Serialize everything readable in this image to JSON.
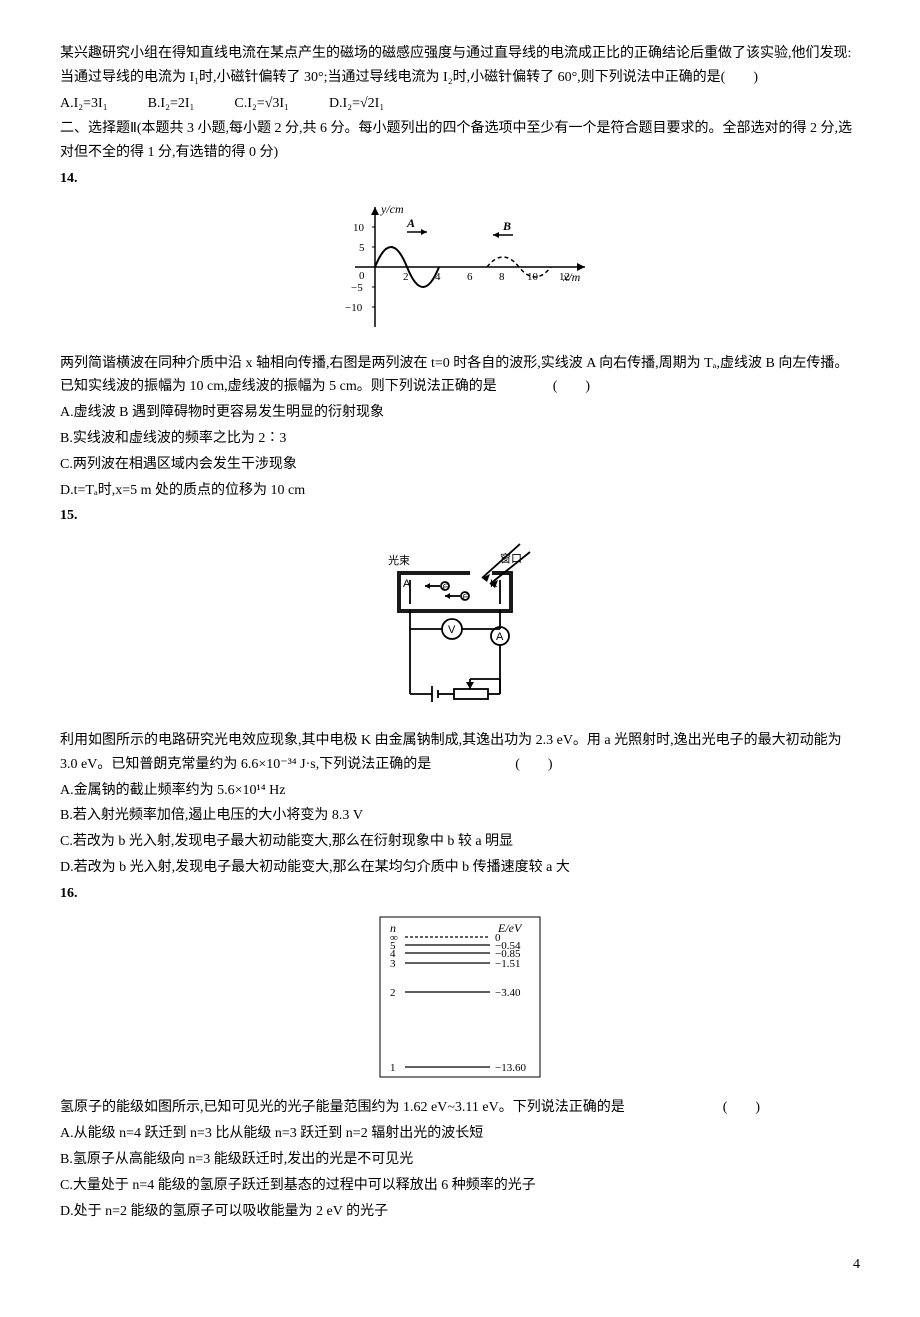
{
  "q13_intro": "某兴趣研究小组在得知直线电流在某点产生的磁场的磁感应强度与通过直导线的电流成正比的正确结论后重做了该实验,他们发现:当通过导线的电流为 I₁时,小磁针偏转了 30°;当通过导线电流为 I₂时,小磁针偏转了 60°,则下列说法中正确的是(　　)",
  "q13_options": [
    "A.I₂=3I₁",
    "B.I₂=2I₁",
    "C.I₂=√3I₁",
    "D.I₂=√2I₁"
  ],
  "section2": "二、选择题Ⅱ(本题共 3 小题,每小题 2 分,共 6 分。每小题列出的四个备选项中至少有一个是符合题目要求的。全部选对的得 2 分,选对但不全的得 1 分,有选错的得 0 分)",
  "q14_num": "14.",
  "q14_body": "两列简谐横波在同种介质中沿 x 轴相向传播,右图是两列波在 t=0 时各自的波形,实线波 A 向右传播,周期为 Tₐ,虚线波 B 向左传播。已知实线波的振幅为 10 cm,虚线波的振幅为 5 cm。则下列说法正确的是　　　　(　　)",
  "q14_opts": [
    "A.虚线波 B 遇到障碍物时更容易发生明显的衍射现象",
    "B.实线波和虚线波的频率之比为 2∶3",
    "C.两列波在相遇区域内会发生干涉现象",
    "D.t=Tₐ时,x=5 m 处的质点的位移为 10 cm"
  ],
  "q15_num": "15.",
  "q15_body": "利用如图所示的电路研究光电效应现象,其中电极 K 由金属钠制成,其逸出功为 2.3 eV。用 a 光照射时,逸出光电子的最大初动能为 3.0 eV。已知普朗克常量约为 6.6×10⁻³⁴ J·s,下列说法正确的是　　　　　　(　　)",
  "q15_opts": [
    "A.金属钠的截止频率约为 5.6×10¹⁴ Hz",
    "B.若入射光频率加倍,遏止电压的大小将变为 8.3 V",
    "C.若改为 b 光入射,发现电子最大初动能变大,那么在衍射现象中 b 较 a 明显",
    "D.若改为 b 光入射,发现电子最大初动能变大,那么在某均匀介质中 b 传播速度较 a 大"
  ],
  "q16_num": "16.",
  "q16_body": "氢原子的能级如图所示,已知可见光的光子能量范围约为 1.62 eV~3.11 eV。下列说法正确的是　　　　　　　(　　)",
  "q16_opts": [
    "A.从能级 n=4 跃迁到 n=3 比从能级 n=3 跃迁到 n=2 辐射出光的波长短",
    "B.氢原子从高能级向 n=3 能级跃迁时,发出的光是不可见光",
    "C.大量处于 n=4 能级的氢原子跃迁到基态的过程中可以释放出 6 种频率的光子",
    "D.处于 n=2 能级的氢原子可以吸收能量为 2 eV 的光子"
  ],
  "wave_chart": {
    "x_axis_label": "x/m",
    "y_axis_label": "y/cm",
    "y_ticks": [
      -10,
      -5,
      0,
      5,
      10
    ],
    "x_ticks": [
      2,
      4,
      6,
      8,
      10,
      12
    ],
    "waveA": {
      "amplitude": 10,
      "wavelength": 4,
      "phase": 0,
      "label": "A",
      "stroke": "#000",
      "dash": "none"
    },
    "waveB": {
      "amplitude": 5,
      "center_peak_x": 9,
      "wavelength": 4,
      "label": "B",
      "stroke": "#000",
      "dash": "3,2"
    },
    "arrowA_x": 2.5,
    "arrowB_x": 8.3,
    "colors": {
      "axis": "#000",
      "bg": "#fff"
    }
  },
  "circuit": {
    "labels": {
      "A_electrode": "A",
      "K_electrode": "K",
      "voltmeter": "V",
      "ammeter": "A",
      "window": "窗口",
      "beam": "光束"
    },
    "stroke": "#000"
  },
  "energy_levels": {
    "header_n": "n",
    "header_E": "E/eV",
    "levels": [
      {
        "n": "∞",
        "E": "0"
      },
      {
        "n": "5",
        "E": "−0.54"
      },
      {
        "n": "4",
        "E": "−0.85"
      },
      {
        "n": "3",
        "E": "−1.51"
      },
      {
        "n": "2",
        "E": "−3.40"
      },
      {
        "n": "1",
        "E": "−13.60"
      }
    ],
    "y_positions": [
      0,
      8,
      16,
      26,
      55,
      130
    ],
    "box_stroke": "#000"
  },
  "page_number": "4"
}
